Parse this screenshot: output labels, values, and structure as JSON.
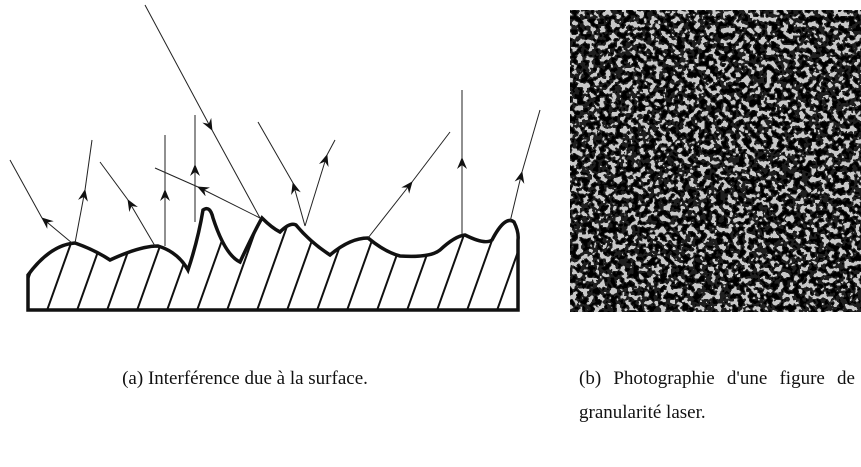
{
  "figure": {
    "captions": [
      "(a) Interférence due à la surface.",
      "(b) Photographie d'une figure de granularité laser."
    ]
  }
}
